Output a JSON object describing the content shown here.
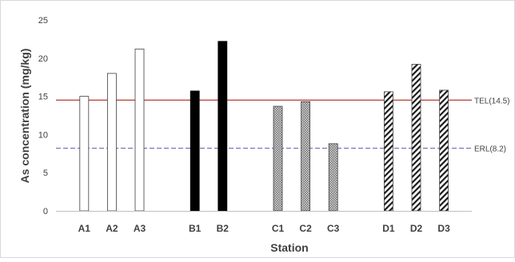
{
  "chart_data": {
    "type": "bar",
    "xlabel": "Station",
    "ylabel": "As concentration (mg/kg)",
    "ylim": [
      0,
      25
    ],
    "yticks": [
      0,
      5,
      10,
      15,
      20,
      25
    ],
    "grid": false,
    "groups": [
      {
        "pattern": "hollow",
        "fill": "#ffffff",
        "stroke": "#404040",
        "categories": [
          "A1",
          "A2",
          "A3"
        ],
        "values": [
          15.0,
          18.0,
          21.2
        ]
      },
      {
        "pattern": "solid",
        "fill": "#000000",
        "stroke": "#000000",
        "categories": [
          "B1",
          "B2"
        ],
        "values": [
          15.7,
          22.2
        ]
      },
      {
        "pattern": "dotted",
        "fill": "#9a9a9a",
        "stroke": "#404040",
        "categories": [
          "C1",
          "C2",
          "C3"
        ],
        "values": [
          13.7,
          14.3,
          8.8
        ]
      },
      {
        "pattern": "diagonal-hatch",
        "fill": "#000000",
        "stroke": "#404040",
        "categories": [
          "D1",
          "D2",
          "D3"
        ],
        "values": [
          15.6,
          19.2,
          15.8
        ]
      }
    ],
    "reference_lines": [
      {
        "label": "TEL(14.5)",
        "value": 14.5,
        "color": "#c0504d",
        "style": "solid"
      },
      {
        "label": "ERL(8.2)",
        "value": 8.2,
        "color": "#7f7fbf",
        "style": "dashed"
      }
    ]
  }
}
